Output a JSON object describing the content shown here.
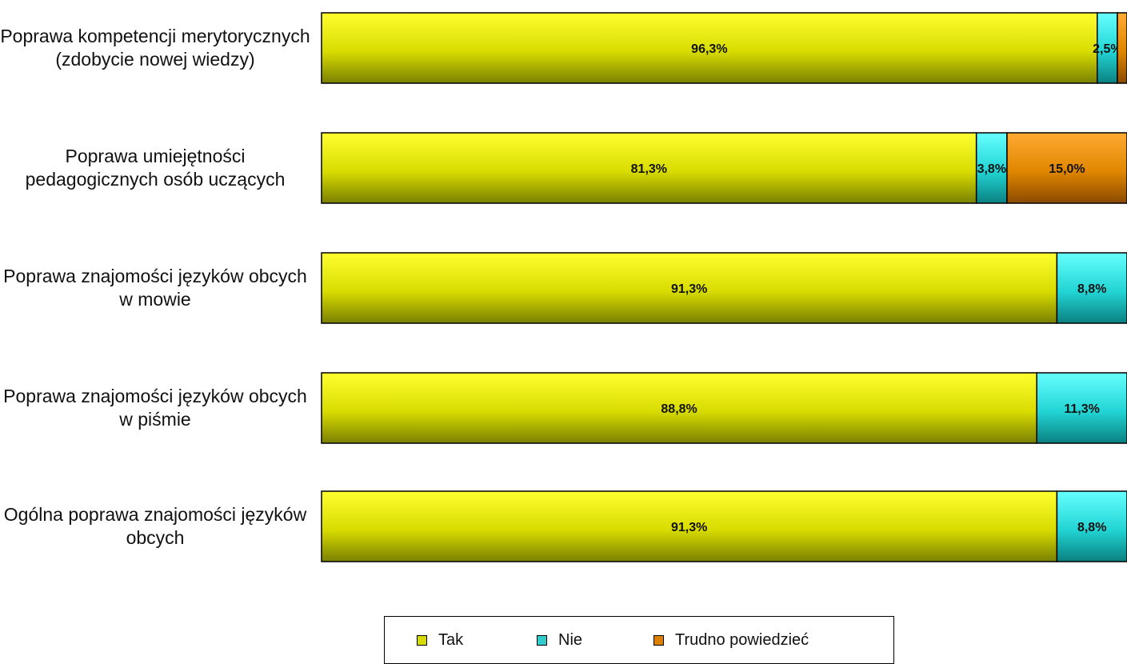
{
  "chart_data": {
    "type": "bar",
    "orientation": "horizontal",
    "stacked": true,
    "categories": [
      "Poprawa kompetencji merytorycznych (zdobycie nowej wiedzy)",
      "Poprawa umiejętności pedagogicznych osób uczących",
      "Poprawa znajomości języków obcych w mowie",
      "Poprawa znajomości języków obcych w piśmie",
      "Ogólna poprawa znajomości języków obcych"
    ],
    "series": [
      {
        "name": "Tak",
        "color": "#d6dc00",
        "values": [
          96.3,
          81.3,
          91.3,
          88.8,
          91.3
        ],
        "labels": [
          "96,3%",
          "81,3%",
          "91,3%",
          "88,8%",
          "91,3%"
        ]
      },
      {
        "name": "Nie",
        "color": "#33cccc",
        "values": [
          2.5,
          3.8,
          8.8,
          11.3,
          8.8
        ],
        "labels": [
          "2,5%",
          "3,8%",
          "8,8%",
          "11,3%",
          "8,8%"
        ]
      },
      {
        "name": "Trudno powiedzieć",
        "color": "#dd8000",
        "values": [
          1.2,
          15.0,
          0,
          0,
          0
        ],
        "labels": [
          "",
          "15,0%",
          "",
          "",
          ""
        ]
      }
    ],
    "xlim": [
      0,
      100
    ],
    "grid": false,
    "legend_position": "bottom"
  }
}
